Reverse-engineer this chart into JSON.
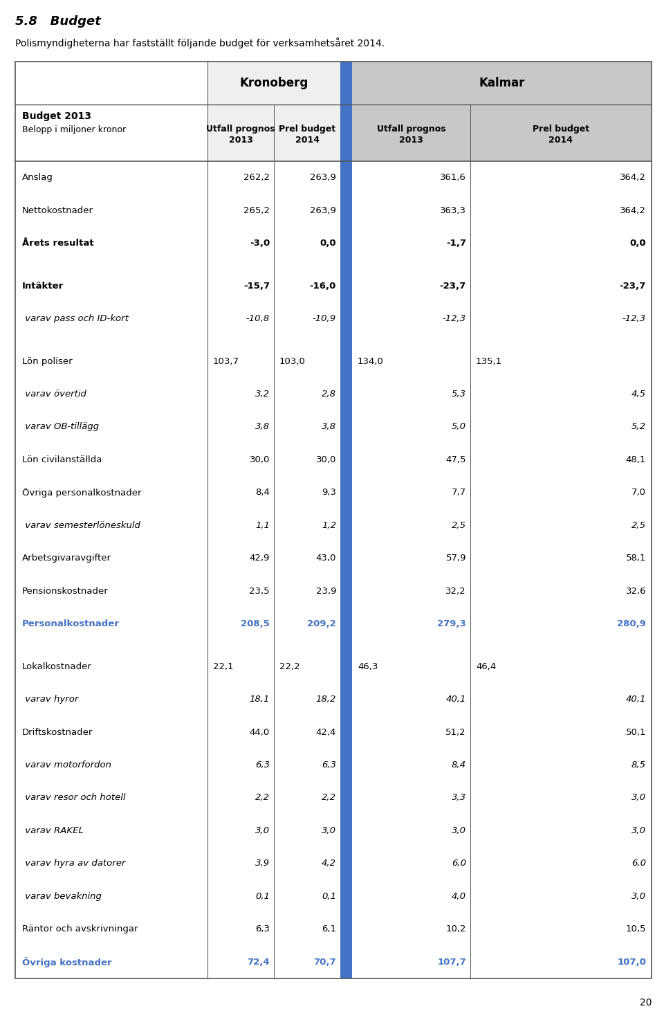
{
  "title_bold": "5.8   Budget",
  "subtitle": "Polismyndigheterna har fastställt följande budget för verksamhetsåret 2014.",
  "header_region1": "Kronoberg",
  "header_region2": "Kalmar",
  "col_headers": [
    [
      "Utfall prognos",
      "2013"
    ],
    [
      "Prel budget",
      "2014"
    ],
    [
      "Utfall prognos",
      "2013"
    ],
    [
      "Prel budget",
      "2014"
    ]
  ],
  "budget_label": "Budget 2013",
  "belopp_label": "Belopp i miljoner kronor",
  "rows": [
    {
      "label": "Anslag",
      "bold": false,
      "italic": false,
      "blue": false,
      "values": [
        "262,2",
        "263,9",
        "361,6",
        "364,2"
      ],
      "left_aligned": [
        false,
        false,
        false,
        false
      ],
      "separator_after": false
    },
    {
      "label": "Nettokostnader",
      "bold": false,
      "italic": false,
      "blue": false,
      "values": [
        "265,2",
        "263,9",
        "363,3",
        "364,2"
      ],
      "left_aligned": [
        false,
        false,
        false,
        false
      ],
      "separator_after": false
    },
    {
      "label": "Årets resultat",
      "bold": true,
      "italic": false,
      "blue": false,
      "values": [
        "-3,0",
        "0,0",
        "-1,7",
        "0,0"
      ],
      "left_aligned": [
        false,
        false,
        false,
        false
      ],
      "separator_after": true
    },
    {
      "label": "Intäkter",
      "bold": true,
      "italic": false,
      "blue": false,
      "values": [
        "-15,7",
        "-16,0",
        "-23,7",
        "-23,7"
      ],
      "left_aligned": [
        false,
        false,
        false,
        false
      ],
      "separator_after": false
    },
    {
      "label": " varav pass och ID-kort",
      "bold": false,
      "italic": true,
      "blue": false,
      "values": [
        "-10,8",
        "-10,9",
        "-12,3",
        "-12,3"
      ],
      "left_aligned": [
        false,
        false,
        false,
        false
      ],
      "separator_after": true
    },
    {
      "label": "Lön poliser",
      "bold": false,
      "italic": false,
      "blue": false,
      "values": [
        "103,7",
        "103,0",
        "134,0",
        "135,1"
      ],
      "left_aligned": [
        true,
        true,
        true,
        true
      ],
      "separator_after": false
    },
    {
      "label": " varav övertid",
      "bold": false,
      "italic": true,
      "blue": false,
      "values": [
        "3,2",
        "2,8",
        "5,3",
        "4,5"
      ],
      "left_aligned": [
        false,
        false,
        false,
        false
      ],
      "separator_after": false
    },
    {
      "label": " varav OB-tillägg",
      "bold": false,
      "italic": true,
      "blue": false,
      "values": [
        "3,8",
        "3,8",
        "5,0",
        "5,2"
      ],
      "left_aligned": [
        false,
        false,
        false,
        false
      ],
      "separator_after": false
    },
    {
      "label": "Lön civilanställda",
      "bold": false,
      "italic": false,
      "blue": false,
      "values": [
        "30,0",
        "30,0",
        "47,5",
        "48,1"
      ],
      "left_aligned": [
        false,
        false,
        false,
        false
      ],
      "separator_after": false
    },
    {
      "label": "Övriga personalkostnader",
      "bold": false,
      "italic": false,
      "blue": false,
      "values": [
        "8,4",
        "9,3",
        "7,7",
        "7,0"
      ],
      "left_aligned": [
        false,
        false,
        false,
        false
      ],
      "separator_after": false
    },
    {
      "label": " varav semesterlöneskuld",
      "bold": false,
      "italic": true,
      "blue": false,
      "values": [
        "1,1",
        "1,2",
        "2,5",
        "2,5"
      ],
      "left_aligned": [
        false,
        false,
        false,
        false
      ],
      "separator_after": false
    },
    {
      "label": "Arbetsgivaravgifter",
      "bold": false,
      "italic": false,
      "blue": false,
      "values": [
        "42,9",
        "43,0",
        "57,9",
        "58,1"
      ],
      "left_aligned": [
        false,
        false,
        false,
        false
      ],
      "separator_after": false
    },
    {
      "label": "Pensionskostnader",
      "bold": false,
      "italic": false,
      "blue": false,
      "values": [
        "23,5",
        "23,9",
        "32,2",
        "32,6"
      ],
      "left_aligned": [
        false,
        false,
        false,
        false
      ],
      "separator_after": false
    },
    {
      "label": "Personalkostnader",
      "bold": true,
      "italic": false,
      "blue": true,
      "values": [
        "208,5",
        "209,2",
        "279,3",
        "280,9"
      ],
      "left_aligned": [
        false,
        false,
        false,
        false
      ],
      "separator_after": true
    },
    {
      "label": "Lokalkostnader",
      "bold": false,
      "italic": false,
      "blue": false,
      "values": [
        "22,1",
        "22,2",
        "46,3",
        "46,4"
      ],
      "left_aligned": [
        true,
        true,
        true,
        true
      ],
      "separator_after": false
    },
    {
      "label": " varav hyror",
      "bold": false,
      "italic": true,
      "blue": false,
      "values": [
        "18,1",
        "18,2",
        "40,1",
        "40,1"
      ],
      "left_aligned": [
        false,
        false,
        false,
        false
      ],
      "separator_after": false
    },
    {
      "label": "Driftskostnader",
      "bold": false,
      "italic": false,
      "blue": false,
      "values": [
        "44,0",
        "42,4",
        "51,2",
        "50,1"
      ],
      "left_aligned": [
        false,
        false,
        false,
        false
      ],
      "separator_after": false
    },
    {
      "label": " varav motorfordon",
      "bold": false,
      "italic": true,
      "blue": false,
      "values": [
        "6,3",
        "6,3",
        "8,4",
        "8,5"
      ],
      "left_aligned": [
        false,
        false,
        false,
        false
      ],
      "separator_after": false
    },
    {
      "label": " varav resor och hotell",
      "bold": false,
      "italic": true,
      "blue": false,
      "values": [
        "2,2",
        "2,2",
        "3,3",
        "3,0"
      ],
      "left_aligned": [
        false,
        false,
        false,
        false
      ],
      "separator_after": false
    },
    {
      "label": " varav RAKEL",
      "bold": false,
      "italic": true,
      "blue": false,
      "values": [
        "3,0",
        "3,0",
        "3,0",
        "3,0"
      ],
      "left_aligned": [
        false,
        false,
        false,
        false
      ],
      "separator_after": false
    },
    {
      "label": " varav hyra av datorer",
      "bold": false,
      "italic": true,
      "blue": false,
      "values": [
        "3,9",
        "4,2",
        "6,0",
        "6,0"
      ],
      "left_aligned": [
        false,
        false,
        false,
        false
      ],
      "separator_after": false
    },
    {
      "label": " varav bevakning",
      "bold": false,
      "italic": true,
      "blue": false,
      "values": [
        "0,1",
        "0,1",
        "4,0",
        "3,0"
      ],
      "left_aligned": [
        false,
        false,
        false,
        false
      ],
      "separator_after": false
    },
    {
      "label": "Räntor och avskrivningar",
      "bold": false,
      "italic": false,
      "blue": false,
      "values": [
        "6,3",
        "6,1",
        "10,2",
        "10,5"
      ],
      "left_aligned": [
        false,
        false,
        false,
        false
      ],
      "separator_after": false
    },
    {
      "label": "Övriga kostnader",
      "bold": true,
      "italic": false,
      "blue": true,
      "values": [
        "72,4",
        "70,7",
        "107,7",
        "107,0"
      ],
      "left_aligned": [
        false,
        false,
        false,
        false
      ],
      "separator_after": false
    }
  ],
  "page_number": "20",
  "blue_color": "#4472C4",
  "header_bg_kronoberg": "#efefef",
  "header_bg_kalmar": "#c8c8c8",
  "border_color": "#555555",
  "text_color": "#000000"
}
